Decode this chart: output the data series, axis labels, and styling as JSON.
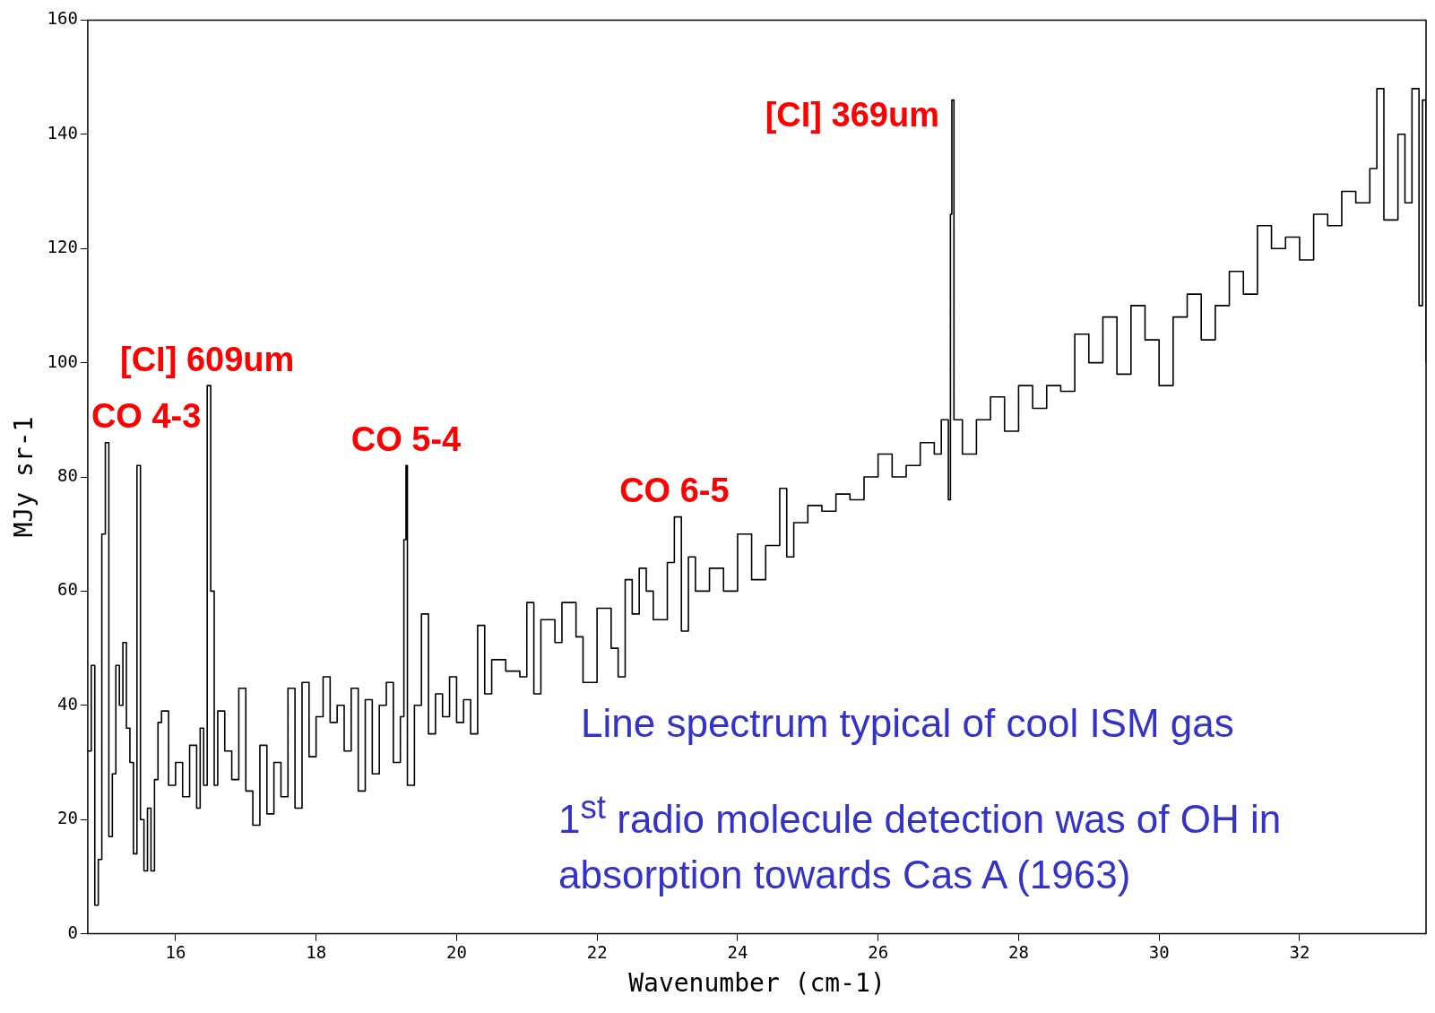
{
  "chart_data": {
    "type": "step",
    "xlabel": "Wavenumber (cm-1)",
    "ylabel": "MJy sr-1",
    "xlim": [
      14.75,
      33.8
    ],
    "xticks": [
      16,
      18,
      20,
      22,
      24,
      26,
      28,
      30,
      32
    ],
    "ylim": [
      0,
      160
    ],
    "yticks": [
      0,
      20,
      40,
      60,
      80,
      100,
      120,
      140,
      160
    ],
    "grid": false,
    "legend": false,
    "x": [
      14.75,
      14.8,
      14.85,
      14.9,
      14.95,
      15.0,
      15.05,
      15.1,
      15.15,
      15.2,
      15.25,
      15.3,
      15.35,
      15.4,
      15.45,
      15.5,
      15.55,
      15.6,
      15.65,
      15.7,
      15.75,
      15.8,
      15.9,
      16.0,
      16.1,
      16.2,
      16.3,
      16.35,
      16.4,
      16.45,
      16.5,
      16.55,
      16.6,
      16.7,
      16.8,
      16.9,
      17.0,
      17.1,
      17.2,
      17.3,
      17.4,
      17.5,
      17.6,
      17.7,
      17.8,
      17.9,
      18.0,
      18.1,
      18.2,
      18.3,
      18.4,
      18.5,
      18.6,
      18.7,
      18.8,
      18.9,
      19.0,
      19.1,
      19.2,
      19.25,
      19.28,
      19.3,
      19.4,
      19.5,
      19.6,
      19.7,
      19.8,
      19.9,
      20.0,
      20.1,
      20.2,
      20.3,
      20.4,
      20.5,
      20.7,
      20.9,
      21.0,
      21.1,
      21.2,
      21.4,
      21.5,
      21.7,
      21.8,
      22.0,
      22.2,
      22.3,
      22.4,
      22.5,
      22.6,
      22.7,
      22.8,
      23.0,
      23.1,
      23.2,
      23.3,
      23.4,
      23.6,
      23.8,
      24.0,
      24.2,
      24.4,
      24.6,
      24.7,
      24.8,
      25.0,
      25.2,
      25.4,
      25.6,
      25.8,
      26.0,
      26.2,
      26.4,
      26.6,
      26.8,
      26.9,
      27.0,
      27.03,
      27.05,
      27.08,
      27.2,
      27.4,
      27.6,
      27.8,
      28.0,
      28.2,
      28.4,
      28.6,
      28.8,
      29.0,
      29.2,
      29.4,
      29.6,
      29.8,
      30.0,
      30.2,
      30.4,
      30.6,
      30.8,
      31.0,
      31.2,
      31.4,
      31.6,
      31.8,
      32.0,
      32.2,
      32.4,
      32.6,
      32.8,
      33.0,
      33.1,
      33.2,
      33.4,
      33.5,
      33.6,
      33.7,
      33.75,
      33.8
    ],
    "series": [
      {
        "color": "#000000",
        "values": [
          32,
          47,
          5,
          13,
          70,
          86,
          17,
          28,
          47,
          40,
          51,
          36,
          30,
          14,
          82,
          20,
          11,
          22,
          11,
          27,
          37,
          39,
          26,
          30,
          24,
          33,
          22,
          36,
          26,
          96,
          60,
          26,
          39,
          32,
          27,
          43,
          25,
          19,
          33,
          21,
          30,
          24,
          43,
          22,
          44,
          31,
          38,
          45,
          37,
          40,
          32,
          43,
          25,
          41,
          28,
          40,
          44,
          30,
          38,
          69,
          82,
          26,
          40,
          56,
          35,
          42,
          38,
          45,
          37,
          41,
          35,
          54,
          42,
          48,
          46,
          45,
          58,
          42,
          55,
          51,
          58,
          52,
          44,
          57,
          50,
          45,
          62,
          56,
          64,
          60,
          55,
          65,
          73,
          53,
          66,
          60,
          64,
          60,
          70,
          62,
          68,
          78,
          66,
          72,
          75,
          74,
          77,
          76,
          80,
          84,
          80,
          82,
          86,
          84,
          90,
          76,
          126,
          146,
          90,
          84,
          90,
          94,
          88,
          96,
          92,
          96,
          95,
          105,
          100,
          108,
          98,
          110,
          104,
          96,
          108,
          112,
          104,
          110,
          116,
          112,
          124,
          120,
          122,
          118,
          126,
          124,
          130,
          128,
          134,
          148,
          125,
          140,
          128,
          148,
          110,
          146,
          100
        ]
      }
    ],
    "annotations": [
      {
        "text": "CO 4-3",
        "x": 15.0,
        "y": 86
      },
      {
        "text": "[CI] 609um",
        "x": 16.45,
        "y": 96
      },
      {
        "text": "CO 5-4",
        "x": 19.28,
        "y": 82
      },
      {
        "text": "CO 6-5",
        "x": 23.1,
        "y": 73
      },
      {
        "text": "[CI] 369um",
        "x": 27.05,
        "y": 146
      },
      "Line spectrum typical of cool ISM gas",
      "1$^{st}$ radio molecule detection was of OH in absorption towards Cas A (1963)"
    ]
  }
}
